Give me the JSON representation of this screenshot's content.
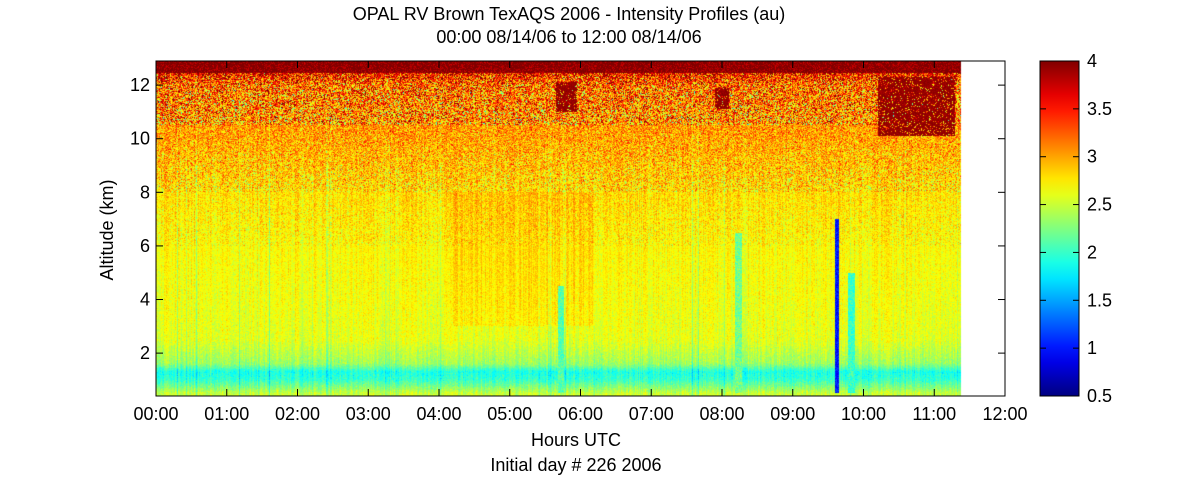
{
  "chart_data": {
    "type": "heatmap",
    "title": "OPAL RV Brown TexAQS 2006 - Intensity Profiles (au)",
    "subtitle": "00:00 08/14/06 to 12:00 08/14/06",
    "xlabel": "Hours UTC",
    "xlabel2": "Initial day # 226  2006",
    "ylabel": "Altitude (km)",
    "xlim": [
      0,
      12
    ],
    "ylim": [
      0.4,
      12.9
    ],
    "x_ticks": [
      0,
      1,
      2,
      3,
      4,
      5,
      6,
      7,
      8,
      9,
      10,
      11,
      12
    ],
    "x_tick_labels": [
      "00:00",
      "01:00",
      "02:00",
      "03:00",
      "04:00",
      "05:00",
      "06:00",
      "07:00",
      "08:00",
      "09:00",
      "10:00",
      "11:00",
      "12:00"
    ],
    "y_ticks": [
      2,
      4,
      6,
      8,
      10,
      12
    ],
    "y_tick_labels": [
      "2",
      "4",
      "6",
      "8",
      "10",
      "12"
    ],
    "data_x_extent": [
      0,
      11.37
    ],
    "colorbar": {
      "colormap": "jet",
      "range": [
        0.5,
        4
      ],
      "ticks": [
        0.5,
        1,
        1.5,
        2,
        2.5,
        3,
        3.5,
        4
      ],
      "tick_labels": [
        "0.5",
        "1",
        "1.5",
        "2",
        "2.5",
        "3",
        "3.5",
        "4"
      ]
    },
    "intensity_profile": {
      "altitude_km": [
        0.5,
        1.0,
        1.3,
        1.6,
        2.5,
        4,
        6,
        8,
        9,
        10,
        11,
        12,
        12.5,
        12.9
      ],
      "typical_value_au": [
        2.5,
        2.0,
        1.9,
        2.35,
        2.6,
        2.65,
        2.7,
        2.8,
        2.9,
        3.0,
        3.1,
        3.2,
        3.6,
        4.0
      ]
    },
    "features": [
      {
        "type": "cloud",
        "x_start": 5.65,
        "x_end": 5.95,
        "alt_bottom": 11.0,
        "alt_top": 12.1,
        "value": 4.0
      },
      {
        "type": "cloud",
        "x_start": 7.9,
        "x_end": 8.1,
        "alt_bottom": 11.1,
        "alt_top": 11.9,
        "value": 4.0
      },
      {
        "type": "cloud",
        "x_start": 10.2,
        "x_end": 11.3,
        "alt_bottom": 10.1,
        "alt_top": 12.3,
        "value": 4.0
      },
      {
        "type": "low-intensity column",
        "x_start": 9.6,
        "x_end": 9.65,
        "alt_bottom": 0.5,
        "alt_top": 7.0,
        "value": 1.0
      },
      {
        "type": "low-intensity column",
        "x_start": 9.78,
        "x_end": 9.88,
        "alt_bottom": 0.5,
        "alt_top": 5.0,
        "value": 2.0
      },
      {
        "type": "low-intensity column",
        "x_start": 5.68,
        "x_end": 5.76,
        "alt_bottom": 0.5,
        "alt_top": 4.5,
        "value": 2.1
      },
      {
        "type": "low-intensity column",
        "x_start": 8.18,
        "x_end": 8.28,
        "alt_bottom": 0.5,
        "alt_top": 6.5,
        "value": 2.2
      }
    ]
  }
}
